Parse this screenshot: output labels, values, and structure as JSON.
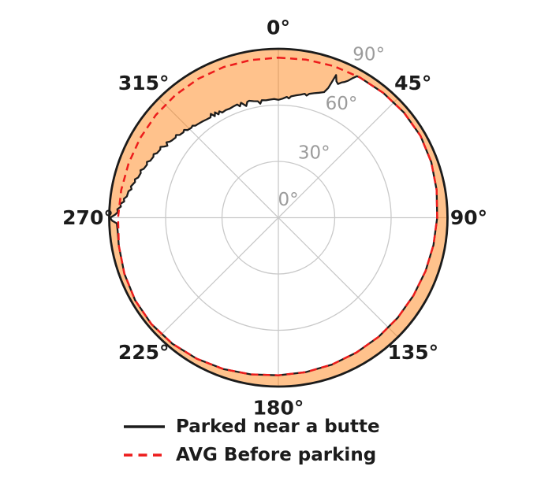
{
  "chart_data": {
    "type": "line",
    "projection": "polar",
    "theta_direction": "clockwise",
    "theta_zero_location": "top",
    "rlim": [
      0,
      90
    ],
    "r_ticks": [
      0,
      30,
      60,
      90
    ],
    "r_tick_labels": [
      "0°",
      "30°",
      "60°",
      "90°"
    ],
    "theta_tick_labels": [
      "0°",
      "45°",
      "90°",
      "135°",
      "180°",
      "225°",
      "270°",
      "315°"
    ],
    "grid": true,
    "legend_position": "bottom-left",
    "series": [
      {
        "name": "Parked near a butte",
        "color": "#1c1c1c",
        "style": "solid",
        "points": [
          [
            0,
            62.8
          ],
          [
            2,
            63.5
          ],
          [
            4,
            64.5
          ],
          [
            5,
            63.8
          ],
          [
            6,
            65
          ],
          [
            8,
            65.8
          ],
          [
            10,
            66.5
          ],
          [
            12,
            67.5
          ],
          [
            13,
            66.8
          ],
          [
            14,
            68
          ],
          [
            16,
            69
          ],
          [
            18,
            70
          ],
          [
            20,
            71.2
          ],
          [
            21,
            74
          ],
          [
            22,
            82
          ],
          [
            23,
            79
          ],
          [
            24,
            78
          ],
          [
            25,
            79.5
          ],
          [
            26,
            80.5
          ],
          [
            27,
            82
          ],
          [
            28,
            84.2
          ],
          [
            29,
            86.2
          ],
          [
            30,
            86.4
          ],
          [
            40,
            86.8
          ],
          [
            50,
            87.2
          ],
          [
            60,
            87.3
          ],
          [
            70,
            86.6
          ],
          [
            80,
            85.5
          ],
          [
            90,
            84.5
          ],
          [
            100,
            83.8
          ],
          [
            110,
            83.3
          ],
          [
            120,
            83
          ],
          [
            130,
            82.9
          ],
          [
            140,
            82.9
          ],
          [
            150,
            83
          ],
          [
            160,
            83.3
          ],
          [
            170,
            83.6
          ],
          [
            180,
            84
          ],
          [
            190,
            84.8
          ],
          [
            200,
            85.8
          ],
          [
            210,
            86.8
          ],
          [
            220,
            87.7
          ],
          [
            230,
            88.2
          ],
          [
            240,
            88
          ],
          [
            250,
            87.2
          ],
          [
            260,
            86.2
          ],
          [
            265,
            85.8
          ],
          [
            268,
            86
          ],
          [
            269,
            88.5
          ],
          [
            270,
            89.5
          ],
          [
            271,
            87
          ],
          [
            272,
            85.5
          ],
          [
            273,
            85.8
          ],
          [
            274,
            84
          ],
          [
            275,
            84.4
          ],
          [
            276,
            82.5
          ],
          [
            277,
            82.8
          ],
          [
            278,
            81.4
          ],
          [
            280,
            81
          ],
          [
            281,
            79.6
          ],
          [
            282,
            80.2
          ],
          [
            284,
            78.6
          ],
          [
            285,
            79
          ],
          [
            286,
            77.6
          ],
          [
            288,
            77
          ],
          [
            289,
            77.6
          ],
          [
            290,
            76.2
          ],
          [
            292,
            75.4
          ],
          [
            293,
            76
          ],
          [
            294,
            74.6
          ],
          [
            296,
            74
          ],
          [
            297,
            74.5
          ],
          [
            298,
            73.2
          ],
          [
            300,
            72.6
          ],
          [
            301,
            73.2
          ],
          [
            302,
            71.6
          ],
          [
            303,
            70.4
          ],
          [
            304,
            71.8
          ],
          [
            305,
            70.6
          ],
          [
            306,
            70
          ],
          [
            308,
            69.4
          ],
          [
            309,
            70
          ],
          [
            310,
            68.6
          ],
          [
            312,
            68
          ],
          [
            313,
            68.6
          ],
          [
            314,
            67.2
          ],
          [
            316,
            66.6
          ],
          [
            317,
            67
          ],
          [
            318,
            66
          ],
          [
            320,
            65.6
          ],
          [
            322,
            65.2
          ],
          [
            324,
            64.8
          ],
          [
            326,
            64.5
          ],
          [
            327,
            66
          ],
          [
            328,
            63.8
          ],
          [
            329,
            65.5
          ],
          [
            330,
            63.6
          ],
          [
            331,
            64.8
          ],
          [
            332,
            63.5
          ],
          [
            334,
            63.8
          ],
          [
            336,
            63.6
          ],
          [
            338,
            63.9
          ],
          [
            340,
            64.2
          ],
          [
            341,
            62.8
          ],
          [
            342,
            64.4
          ],
          [
            344,
            61.9
          ],
          [
            345,
            63.9
          ],
          [
            346,
            64.2
          ],
          [
            348,
            63.5
          ],
          [
            350,
            63
          ],
          [
            351,
            61.5
          ],
          [
            352,
            63.2
          ],
          [
            354,
            62.9
          ],
          [
            356,
            63.1
          ],
          [
            358,
            63.3
          ],
          [
            360,
            62.8
          ]
        ]
      },
      {
        "name": "AVG Before parking",
        "color": "#ed1c1c",
        "style": "dashed",
        "points": [
          [
            0,
            85.3
          ],
          [
            10,
            85.5
          ],
          [
            20,
            86
          ],
          [
            30,
            86.4
          ],
          [
            40,
            86.8
          ],
          [
            50,
            87.2
          ],
          [
            60,
            87.3
          ],
          [
            70,
            86.6
          ],
          [
            80,
            85.5
          ],
          [
            90,
            84.5
          ],
          [
            100,
            83.8
          ],
          [
            110,
            83.3
          ],
          [
            120,
            83
          ],
          [
            130,
            82.9
          ],
          [
            140,
            82.9
          ],
          [
            150,
            83
          ],
          [
            160,
            83.3
          ],
          [
            170,
            83.6
          ],
          [
            180,
            84
          ],
          [
            190,
            84.8
          ],
          [
            200,
            85.8
          ],
          [
            210,
            86.8
          ],
          [
            220,
            87.7
          ],
          [
            230,
            88.2
          ],
          [
            240,
            88
          ],
          [
            250,
            87.2
          ],
          [
            260,
            86.2
          ],
          [
            270,
            85.3
          ],
          [
            280,
            84.9
          ],
          [
            290,
            84.8
          ],
          [
            300,
            84.9
          ],
          [
            310,
            85.1
          ],
          [
            320,
            85.3
          ],
          [
            330,
            85.4
          ],
          [
            340,
            85.4
          ],
          [
            350,
            85.3
          ],
          [
            360,
            85.3
          ]
        ]
      }
    ],
    "fill": {
      "between": "Parked near a butte curve and outer rim (r=90)",
      "color": "#ff7f0e",
      "opacity": 0.48
    }
  },
  "colors": {
    "grid": "#c9c9c9",
    "rim": "#1b1b1b",
    "background": "#ffffff",
    "theta_labels": "#1b1b1b",
    "r_labels": "#9b9b9b"
  }
}
